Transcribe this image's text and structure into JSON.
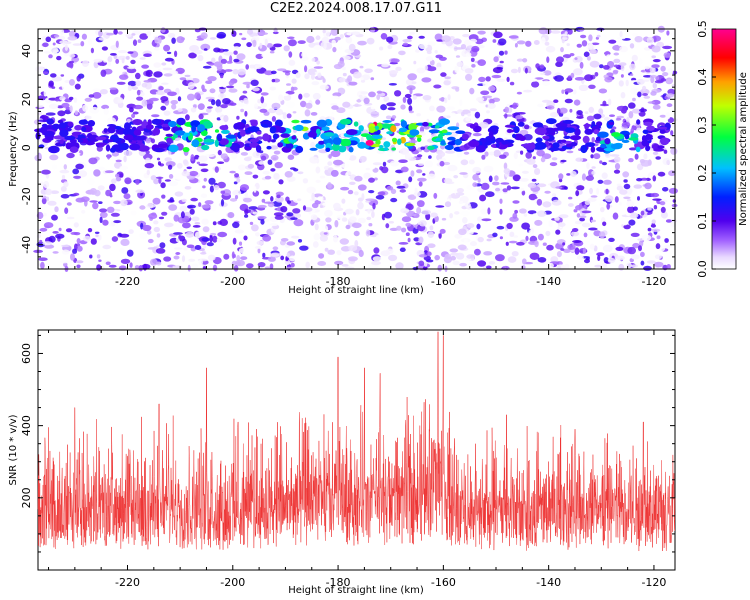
{
  "page_title": "C2E2.2024.008.17.07.G11",
  "chart_data": [
    {
      "type": "heatmap",
      "xlabel": "Height of straight line (km)",
      "ylabel": "Frequency (Hz)",
      "xlim": [
        -237,
        -116
      ],
      "ylim": [
        -50,
        49
      ],
      "xticks": [
        -220,
        -200,
        -180,
        -160,
        -140,
        -120
      ],
      "yticks": [
        -40,
        -20,
        0,
        20,
        40
      ],
      "colorbar": {
        "label": "Normalized spectral amplitude",
        "range": [
          0.0,
          0.5
        ],
        "ticks": [
          "0.0",
          "0.1",
          "0.2",
          "0.3",
          "0.4",
          "0.5"
        ],
        "colormap": "white-purple-blue-cyan-green-yellow-red-magenta"
      },
      "band": {
        "center_hz": 5,
        "strong_x_ranges": [
          [
            -212,
            -200
          ],
          [
            -190,
            -156
          ],
          [
            -130,
            -123
          ]
        ],
        "peak_x": -174,
        "peak_value": 0.5
      },
      "background_value_range": [
        0.0,
        0.12
      ],
      "grid": false
    },
    {
      "type": "line",
      "xlabel": "Height of straight line (km)",
      "ylabel": "SNR (10 * v/v)",
      "xlim": [
        -237,
        -116
      ],
      "ylim": [
        0,
        665
      ],
      "xticks": [
        -220,
        -200,
        -180,
        -160,
        -140,
        -120
      ],
      "yticks": [
        200,
        400,
        600
      ],
      "series": [
        {
          "color": "#ee3333",
          "profile_x": [
            -237,
            -225,
            -210,
            -200,
            -190,
            -180,
            -170,
            -164,
            -161,
            -158,
            -150,
            -135,
            -120,
            -116
          ],
          "profile_mean": [
            140,
            140,
            140,
            135,
            150,
            165,
            160,
            185,
            240,
            130,
            130,
            135,
            130,
            130
          ],
          "peaks": [
            {
              "x": -230,
              "y": 450
            },
            {
              "x": -214,
              "y": 460
            },
            {
              "x": -205,
              "y": 560
            },
            {
              "x": -199,
              "y": 410
            },
            {
              "x": -180,
              "y": 590
            },
            {
              "x": -175,
              "y": 560
            },
            {
              "x": -172,
              "y": 545
            },
            {
              "x": -161,
              "y": 660
            },
            {
              "x": -160,
              "y": 650
            },
            {
              "x": -148,
              "y": 430
            },
            {
              "x": -135,
              "y": 390
            },
            {
              "x": -122,
              "y": 410
            }
          ]
        }
      ],
      "grid": false
    }
  ]
}
